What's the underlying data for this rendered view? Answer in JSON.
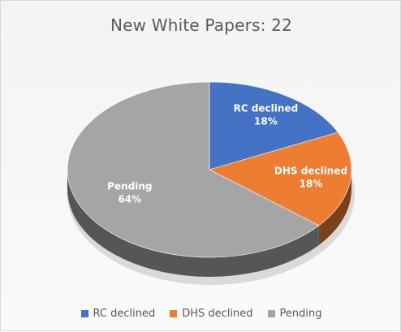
{
  "chart_data": {
    "type": "pie",
    "title": "New White Papers: 22",
    "categories": [
      "RC declined",
      "DHS declined",
      "Pending"
    ],
    "values": [
      18,
      18,
      64
    ],
    "value_labels": [
      "18%",
      "18%",
      "64%"
    ],
    "colors": [
      "#4472c4",
      "#ed7d31",
      "#a5a5a5"
    ],
    "legend_position": "bottom",
    "style": "3d"
  }
}
